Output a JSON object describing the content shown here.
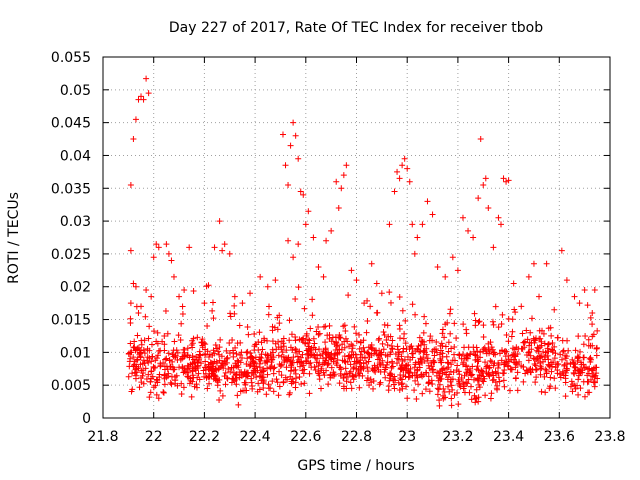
{
  "chart_data": {
    "type": "scatter",
    "title": "Day 227 of 2017, Rate Of TEC Index for receiver tbob",
    "xlabel": "GPS time / hours",
    "ylabel": "ROTI / TECUs",
    "xlim": [
      21.8,
      23.8
    ],
    "ylim": [
      0,
      0.055
    ],
    "grid": true,
    "marker": "plus",
    "series_color": "#ff0000",
    "xticks": [
      21.8,
      22.0,
      22.2,
      22.4,
      22.6,
      22.8,
      23.0,
      23.2,
      23.4,
      23.6,
      23.8
    ],
    "xtick_labels": [
      "21.8",
      "22",
      "22.2",
      "22.4",
      "22.6",
      "22.8",
      "23",
      "23.2",
      "23.4",
      "23.6",
      "23.8"
    ],
    "yticks": [
      0,
      0.005,
      0.01,
      0.015,
      0.02,
      0.025,
      0.03,
      0.035,
      0.04,
      0.045,
      0.05,
      0.055
    ],
    "ytick_labels": [
      "0",
      "0.005",
      "0.01",
      "0.015",
      "0.02",
      "0.025",
      "0.03",
      "0.035",
      "0.04",
      "0.045",
      "0.05",
      "0.055"
    ],
    "series": [
      {
        "name": "ROTI",
        "points": [
          [
            21.91,
            0.0255
          ],
          [
            21.91,
            0.0355
          ],
          [
            21.92,
            0.0425
          ],
          [
            21.93,
            0.0455
          ],
          [
            21.94,
            0.0485
          ],
          [
            21.95,
            0.049
          ],
          [
            21.96,
            0.0485
          ],
          [
            21.97,
            0.0517
          ],
          [
            21.98,
            0.0495
          ],
          [
            21.91,
            0.0175
          ],
          [
            21.92,
            0.0205
          ],
          [
            21.93,
            0.02
          ],
          [
            21.94,
            0.016
          ],
          [
            21.95,
            0.017
          ],
          [
            21.97,
            0.0195
          ],
          [
            21.99,
            0.0185
          ],
          [
            22.0,
            0.0245
          ],
          [
            22.01,
            0.0265
          ],
          [
            22.02,
            0.026
          ],
          [
            22.05,
            0.0265
          ],
          [
            22.06,
            0.025
          ],
          [
            22.07,
            0.024
          ],
          [
            22.08,
            0.0215
          ],
          [
            22.1,
            0.0185
          ],
          [
            22.12,
            0.0195
          ],
          [
            22.14,
            0.026
          ],
          [
            22.2,
            0.0175
          ],
          [
            22.24,
            0.026
          ],
          [
            22.26,
            0.03
          ],
          [
            22.27,
            0.0255
          ],
          [
            22.28,
            0.0265
          ],
          [
            22.3,
            0.025
          ],
          [
            22.32,
            0.0185
          ],
          [
            22.35,
            0.0175
          ],
          [
            22.38,
            0.019
          ],
          [
            22.42,
            0.0215
          ],
          [
            22.45,
            0.02
          ],
          [
            22.48,
            0.021
          ],
          [
            22.51,
            0.0432
          ],
          [
            22.52,
            0.0385
          ],
          [
            22.53,
            0.0355
          ],
          [
            22.54,
            0.0415
          ],
          [
            22.55,
            0.045
          ],
          [
            22.56,
            0.043
          ],
          [
            22.57,
            0.0395
          ],
          [
            22.58,
            0.0345
          ],
          [
            22.59,
            0.034
          ],
          [
            22.6,
            0.0295
          ],
          [
            22.53,
            0.027
          ],
          [
            22.55,
            0.0245
          ],
          [
            22.57,
            0.0265
          ],
          [
            22.61,
            0.0315
          ],
          [
            22.63,
            0.0275
          ],
          [
            22.65,
            0.023
          ],
          [
            22.67,
            0.0215
          ],
          [
            22.68,
            0.027
          ],
          [
            22.7,
            0.0285
          ],
          [
            22.72,
            0.036
          ],
          [
            22.73,
            0.032
          ],
          [
            22.75,
            0.037
          ],
          [
            22.76,
            0.0385
          ],
          [
            22.74,
            0.035
          ],
          [
            22.78,
            0.0225
          ],
          [
            22.8,
            0.021
          ],
          [
            22.83,
            0.0175
          ],
          [
            22.86,
            0.0235
          ],
          [
            22.88,
            0.0205
          ],
          [
            22.9,
            0.019
          ],
          [
            22.93,
            0.0295
          ],
          [
            22.95,
            0.0345
          ],
          [
            22.96,
            0.0375
          ],
          [
            22.97,
            0.0365
          ],
          [
            22.98,
            0.0385
          ],
          [
            22.99,
            0.0395
          ],
          [
            23.0,
            0.038
          ],
          [
            23.01,
            0.036
          ],
          [
            23.02,
            0.0295
          ],
          [
            23.03,
            0.025
          ],
          [
            23.04,
            0.0275
          ],
          [
            23.06,
            0.0295
          ],
          [
            23.08,
            0.033
          ],
          [
            23.1,
            0.031
          ],
          [
            23.12,
            0.023
          ],
          [
            23.15,
            0.0215
          ],
          [
            23.18,
            0.0245
          ],
          [
            23.2,
            0.0225
          ],
          [
            23.22,
            0.0305
          ],
          [
            23.24,
            0.0285
          ],
          [
            23.26,
            0.0275
          ],
          [
            23.28,
            0.0335
          ],
          [
            23.29,
            0.0425
          ],
          [
            23.3,
            0.0355
          ],
          [
            23.31,
            0.0365
          ],
          [
            23.32,
            0.032
          ],
          [
            23.34,
            0.026
          ],
          [
            23.36,
            0.0305
          ],
          [
            23.37,
            0.0295
          ],
          [
            23.38,
            0.0365
          ],
          [
            23.39,
            0.036
          ],
          [
            23.4,
            0.0362
          ],
          [
            23.42,
            0.0205
          ],
          [
            23.45,
            0.017
          ],
          [
            23.48,
            0.0215
          ],
          [
            23.5,
            0.0235
          ],
          [
            23.52,
            0.0185
          ],
          [
            23.55,
            0.0235
          ],
          [
            23.58,
            0.0165
          ],
          [
            23.61,
            0.0255
          ],
          [
            23.63,
            0.021
          ],
          [
            23.66,
            0.0185
          ],
          [
            23.68,
            0.0175
          ],
          [
            23.7,
            0.0195
          ],
          [
            23.73,
            0.016
          ],
          [
            23.74,
            0.0195
          ],
          [
            23.73,
            0.011
          ],
          [
            23.72,
            0.009
          ],
          [
            23.71,
            0.0065
          ],
          [
            23.74,
            0.0055
          ],
          [
            23.0,
            0.003
          ],
          [
            22.02,
            0.003
          ],
          [
            22.55,
            0.0055
          ],
          [
            23.28,
            0.0025
          ],
          [
            23.27,
            0.003
          ],
          [
            22.41,
            0.004
          ],
          [
            22.76,
            0.0045
          ],
          [
            23.53,
            0.004
          ],
          [
            22.95,
            0.0045
          ],
          [
            21.93,
            0.006
          ]
        ]
      }
    ],
    "band": {
      "description": "dense scatter band of ROTI values",
      "x_start": 21.9,
      "x_end": 23.75,
      "y_center": [
        [
          21.9,
          0.0085
        ],
        [
          22.0,
          0.008
        ],
        [
          22.1,
          0.0075
        ],
        [
          22.2,
          0.0085
        ],
        [
          22.3,
          0.0075
        ],
        [
          22.4,
          0.0075
        ],
        [
          22.5,
          0.0085
        ],
        [
          22.6,
          0.0095
        ],
        [
          22.7,
          0.009
        ],
        [
          22.8,
          0.0085
        ],
        [
          22.9,
          0.0085
        ],
        [
          23.0,
          0.008
        ],
        [
          23.1,
          0.0075
        ],
        [
          23.2,
          0.0065
        ],
        [
          23.3,
          0.007
        ],
        [
          23.4,
          0.0085
        ],
        [
          23.5,
          0.0095
        ],
        [
          23.6,
          0.0075
        ],
        [
          23.7,
          0.007
        ],
        [
          23.75,
          0.0075
        ]
      ],
      "y_spread": 0.0045,
      "count": 1600
    }
  }
}
